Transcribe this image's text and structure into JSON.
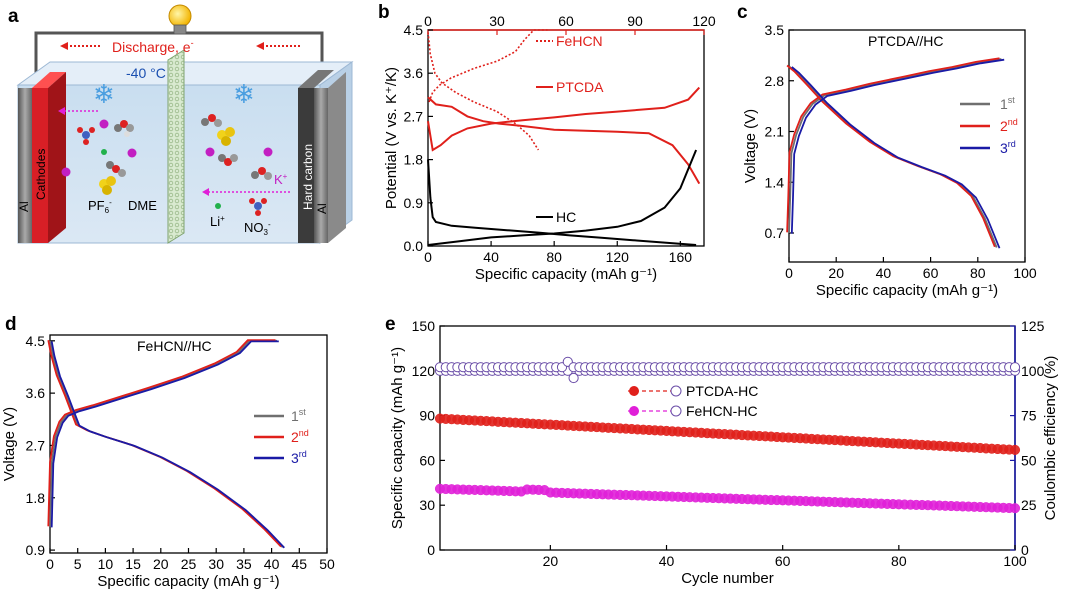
{
  "colors": {
    "red": "#e0201b",
    "blue": "#1a1aa6",
    "gray": "#6f6f6f",
    "black": "#000000",
    "magenta": "#e020d8",
    "purple": "#6b4ea8"
  },
  "panels": {
    "a": "a",
    "b": "b",
    "c": "c",
    "d": "d",
    "e": "e"
  },
  "schematic": {
    "discharge": "Discharge, e",
    "discharge_sup": "-",
    "temperature": "-40 °C",
    "cathodes": "Cathodes",
    "al_left": "Al",
    "al_right": "Al",
    "hard_carbon": "Hard carbon",
    "pf6": "PF",
    "pf6_sub": "6",
    "pf6_sup": "-",
    "dme": "DME",
    "k_ion": "K",
    "k_sup": "+",
    "li_ion": "Li",
    "li_sup": "+",
    "no3": "NO",
    "no3_sub": "3",
    "no3_sup": "-"
  },
  "chart_data": [
    {
      "id": "b",
      "type": "line",
      "xlabel": "Specific capacity (mAh g⁻¹)",
      "ylabel": "Potential (V vs. K⁺/K)",
      "xlim": [
        0,
        175
      ],
      "ylim": [
        0,
        4.5
      ],
      "xticks": [
        "0",
        "40",
        "80",
        "120",
        "160"
      ],
      "yticks": [
        "0.0",
        "0.9",
        "1.8",
        "2.7",
        "3.6",
        "4.5"
      ],
      "top_xlim": [
        0,
        120
      ],
      "top_xticks": [
        "0",
        "30",
        "60",
        "90",
        "120"
      ],
      "series": [
        {
          "name": "FeHCN",
          "style": "dotted",
          "color": "red",
          "axis": "top",
          "charge": [
            [
              0.5,
              3.0
            ],
            [
              2,
              3.2
            ],
            [
              5,
              3.35
            ],
            [
              10,
              3.5
            ],
            [
              20,
              3.7
            ],
            [
              30,
              3.85
            ],
            [
              38,
              4.05
            ],
            [
              42,
              4.3
            ],
            [
              46,
              4.5
            ],
            [
              52,
              4.5
            ]
          ],
          "discharge": [
            [
              0,
              4.45
            ],
            [
              1,
              4.0
            ],
            [
              3,
              3.6
            ],
            [
              6,
              3.4
            ],
            [
              12,
              3.2
            ],
            [
              20,
              3.0
            ],
            [
              30,
              2.8
            ],
            [
              38,
              2.55
            ],
            [
              44,
              2.3
            ],
            [
              48,
              2.0
            ]
          ]
        },
        {
          "name": "PTCDA",
          "style": "solid",
          "color": "red",
          "axis": "bottom",
          "charge": [
            [
              0,
              2.6
            ],
            [
              3,
              2.0
            ],
            [
              8,
              2.1
            ],
            [
              15,
              2.3
            ],
            [
              25,
              2.45
            ],
            [
              40,
              2.55
            ],
            [
              60,
              2.62
            ],
            [
              80,
              2.68
            ],
            [
              100,
              2.75
            ],
            [
              120,
              2.8
            ],
            [
              150,
              2.88
            ],
            [
              165,
              3.05
            ],
            [
              172,
              3.3
            ]
          ],
          "discharge": [
            [
              0,
              3.1
            ],
            [
              5,
              2.95
            ],
            [
              15,
              2.9
            ],
            [
              25,
              2.7
            ],
            [
              35,
              2.6
            ],
            [
              45,
              2.55
            ],
            [
              60,
              2.5
            ],
            [
              80,
              2.42
            ],
            [
              100,
              2.4
            ],
            [
              120,
              2.38
            ],
            [
              140,
              2.35
            ],
            [
              155,
              2.1
            ],
            [
              165,
              1.7
            ],
            [
              172,
              1.3
            ]
          ]
        },
        {
          "name": "HC",
          "style": "solid",
          "color": "black",
          "axis": "bottom",
          "discharge": [
            [
              0,
              1.8
            ],
            [
              1.5,
              1.0
            ],
            [
              3,
              0.6
            ],
            [
              5,
              0.5
            ],
            [
              15,
              0.42
            ],
            [
              30,
              0.38
            ],
            [
              50,
              0.33
            ],
            [
              70,
              0.28
            ],
            [
              90,
              0.22
            ],
            [
              110,
              0.17
            ],
            [
              130,
              0.12
            ],
            [
              150,
              0.07
            ],
            [
              170,
              0.02
            ]
          ],
          "charge": [
            [
              0,
              0.02
            ],
            [
              20,
              0.1
            ],
            [
              40,
              0.18
            ],
            [
              60,
              0.22
            ],
            [
              80,
              0.26
            ],
            [
              100,
              0.32
            ],
            [
              120,
              0.4
            ],
            [
              135,
              0.52
            ],
            [
              150,
              0.8
            ],
            [
              160,
              1.2
            ],
            [
              170,
              2.0
            ]
          ]
        }
      ]
    },
    {
      "id": "c",
      "type": "line",
      "annotation": "PTCDA//HC",
      "xlabel": "Specific capacity (mAh g⁻¹)",
      "ylabel": "Voltage (V)",
      "xlim": [
        0,
        100
      ],
      "ylim": [
        0.3,
        3.5
      ],
      "xticks": [
        "0",
        "20",
        "40",
        "60",
        "80",
        "100"
      ],
      "yticks": [
        "0.7",
        "1.4",
        "2.1",
        "2.8",
        "3.5"
      ],
      "legend": [
        {
          "num": "1",
          "sup": "st",
          "color": "gray"
        },
        {
          "num": "2",
          "sup": "nd",
          "color": "red"
        },
        {
          "num": "3",
          "sup": "rd",
          "color": "blue"
        }
      ],
      "charge": [
        [
          0,
          0.7
        ],
        [
          0.5,
          1.2
        ],
        [
          1,
          1.8
        ],
        [
          3,
          2.05
        ],
        [
          6,
          2.3
        ],
        [
          10,
          2.48
        ],
        [
          15,
          2.6
        ],
        [
          25,
          2.67
        ],
        [
          35,
          2.75
        ],
        [
          50,
          2.85
        ],
        [
          60,
          2.92
        ],
        [
          70,
          2.98
        ],
        [
          80,
          3.05
        ],
        [
          90,
          3.1
        ]
      ],
      "discharge": [
        [
          0,
          3.0
        ],
        [
          3,
          2.92
        ],
        [
          8,
          2.75
        ],
        [
          15,
          2.5
        ],
        [
          25,
          2.2
        ],
        [
          35,
          1.95
        ],
        [
          45,
          1.75
        ],
        [
          55,
          1.62
        ],
        [
          65,
          1.5
        ],
        [
          72,
          1.38
        ],
        [
          78,
          1.2
        ],
        [
          83,
          0.9
        ],
        [
          88,
          0.5
        ]
      ]
    },
    {
      "id": "d",
      "type": "line",
      "annotation": "FeHCN//HC",
      "xlabel": "Specific capacity (mAh g⁻¹)",
      "ylabel": "Voltage (V)",
      "xlim": [
        0,
        50
      ],
      "ylim": [
        0.85,
        4.6
      ],
      "xticks": [
        "0",
        "5",
        "10",
        "15",
        "20",
        "25",
        "30",
        "35",
        "40",
        "45",
        "50"
      ],
      "yticks": [
        "0.9",
        "1.8",
        "2.7",
        "3.6",
        "4.5"
      ],
      "legend": [
        {
          "num": "1",
          "sup": "st",
          "color": "gray"
        },
        {
          "num": "2",
          "sup": "nd",
          "color": "red"
        },
        {
          "num": "3",
          "sup": "rd",
          "color": "blue"
        }
      ],
      "charge": [
        [
          0,
          1.3
        ],
        [
          0.3,
          2.4
        ],
        [
          1,
          2.85
        ],
        [
          2,
          3.1
        ],
        [
          3,
          3.22
        ],
        [
          5,
          3.3
        ],
        [
          8,
          3.38
        ],
        [
          12,
          3.5
        ],
        [
          18,
          3.68
        ],
        [
          24,
          3.87
        ],
        [
          30,
          4.1
        ],
        [
          34,
          4.3
        ],
        [
          36,
          4.5
        ],
        [
          41,
          4.5
        ]
      ],
      "discharge": [
        [
          0,
          4.5
        ],
        [
          0.5,
          4.25
        ],
        [
          1.5,
          3.9
        ],
        [
          3,
          3.55
        ],
        [
          4,
          3.3
        ],
        [
          5,
          3.05
        ],
        [
          7,
          2.95
        ],
        [
          10,
          2.85
        ],
        [
          15,
          2.7
        ],
        [
          20,
          2.5
        ],
        [
          25,
          2.25
        ],
        [
          30,
          1.95
        ],
        [
          35,
          1.6
        ],
        [
          39,
          1.25
        ],
        [
          42,
          0.95
        ]
      ]
    },
    {
      "id": "e",
      "type": "scatter",
      "xlabel": "Cycle number",
      "ylabel": "Specific capacity (mAh g⁻¹)",
      "y2label": "Coulombic efficiency (%)",
      "xlim": [
        1,
        100
      ],
      "ylim": [
        0,
        150
      ],
      "y2lim": [
        0,
        125
      ],
      "xticks": [
        "20",
        "40",
        "60",
        "80",
        "100"
      ],
      "yticks": [
        "0",
        "30",
        "60",
        "90",
        "120",
        "150"
      ],
      "y2ticks": [
        "0",
        "25",
        "50",
        "75",
        "100",
        "125"
      ],
      "series": [
        {
          "name": "PTCDA-HC",
          "color": "red",
          "capacity_start": 88,
          "capacity_end": 67,
          "ce": 100
        },
        {
          "name": "FeHCN-HC",
          "color": "magenta",
          "capacity_start": 41,
          "capacity_end": 28,
          "ce": 102
        }
      ]
    }
  ]
}
